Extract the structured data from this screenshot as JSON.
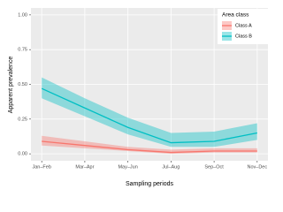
{
  "chart_data": {
    "type": "line-band",
    "x_label": "Sampling periods",
    "y_label": "Apparent prevalence",
    "categories": [
      "Jan–Feb",
      "Mar–Apr",
      "May–Jun",
      "Jul–Aug",
      "Sep–Oct",
      "Nov–Dec"
    ],
    "series": [
      {
        "name": "Class A",
        "color": "#f8766d",
        "values": [
          0.09,
          0.06,
          0.03,
          0.01,
          0.02,
          0.02
        ],
        "lower": [
          0.06,
          0.04,
          0.02,
          0.0,
          0.01,
          0.01
        ],
        "upper": [
          0.13,
          0.09,
          0.05,
          0.03,
          0.04,
          0.04
        ]
      },
      {
        "name": "Class B",
        "color": "#00bfc4",
        "values": [
          0.47,
          0.33,
          0.19,
          0.08,
          0.09,
          0.15
        ],
        "lower": [
          0.4,
          0.27,
          0.14,
          0.05,
          0.05,
          0.1
        ],
        "upper": [
          0.55,
          0.4,
          0.26,
          0.15,
          0.16,
          0.22
        ]
      }
    ],
    "ylim": [
      -0.05,
      1.05
    ],
    "yticks": [
      {
        "value": 0,
        "label": "0.00"
      },
      {
        "value": 0.25,
        "label": "0.25"
      },
      {
        "value": 0.5,
        "label": "0.50"
      },
      {
        "value": 0.75,
        "label": "0.75"
      },
      {
        "value": 1,
        "label": "1.00"
      }
    ],
    "grid": true,
    "legend": {
      "title": "Area class",
      "position": "top-right"
    }
  }
}
